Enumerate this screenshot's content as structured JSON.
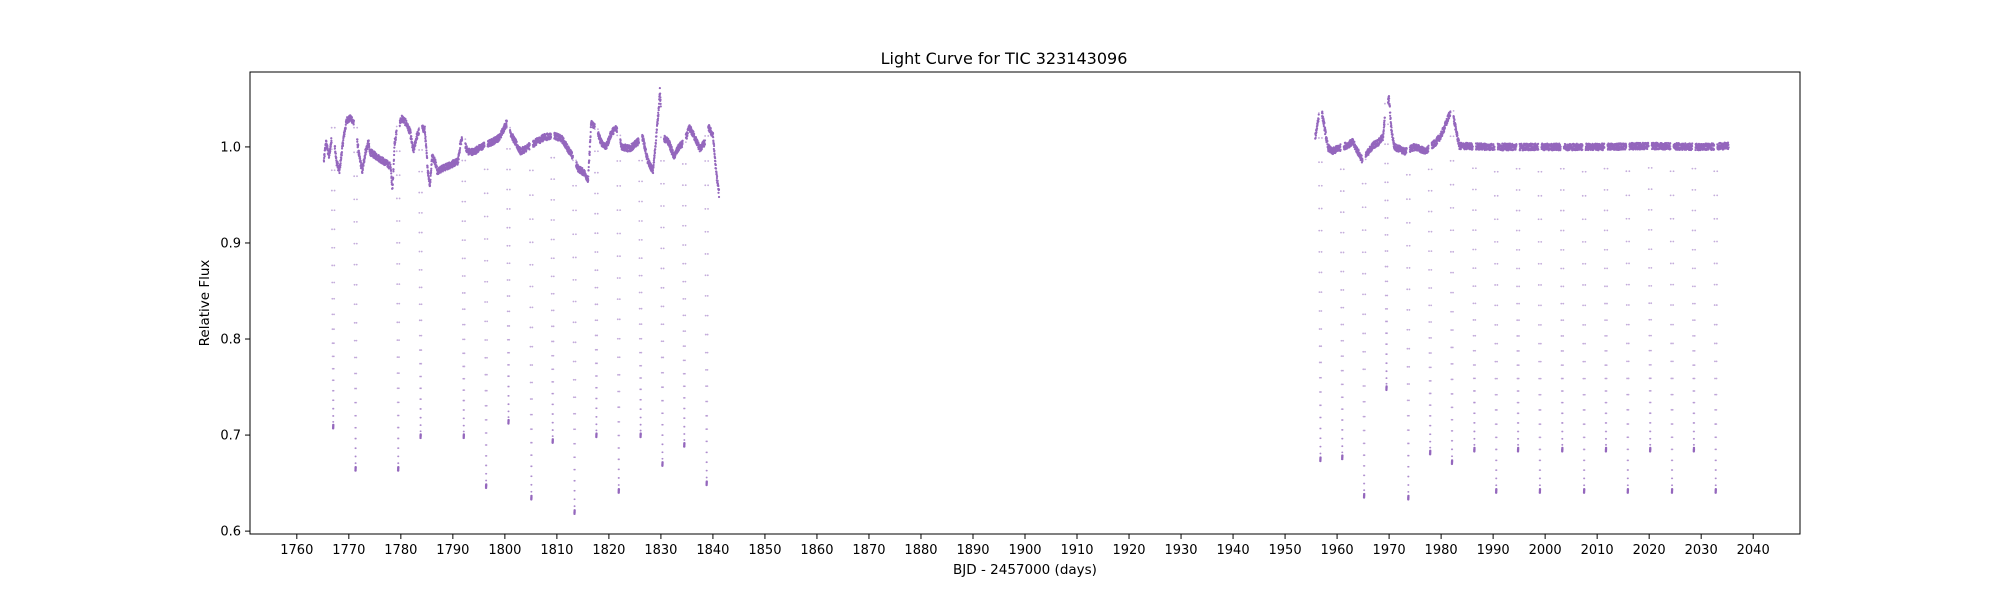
{
  "chart_data": {
    "type": "scatter",
    "title": "Light Curve for TIC 323143096",
    "xlabel": "BJD - 2457000 (days)",
    "ylabel": "Relative Flux",
    "xlim": [
      1751,
      2049
    ],
    "ylim": [
      0.597,
      1.078
    ],
    "x_ticks": [
      1760,
      1770,
      1780,
      1790,
      1800,
      1810,
      1820,
      1830,
      1840,
      1850,
      1860,
      1870,
      1880,
      1890,
      1900,
      1910,
      1920,
      1930,
      1940,
      1950,
      1960,
      1970,
      1980,
      1990,
      2000,
      2010,
      2020,
      2030,
      2040
    ],
    "y_ticks": [
      0.6,
      0.7,
      0.8,
      0.9,
      1.0
    ],
    "y_tick_labels": [
      "0.6",
      "0.7",
      "0.8",
      "0.9",
      "1.0"
    ],
    "grid": false,
    "marker_color": "#9467bd",
    "series": [
      {
        "segments": [
          {
            "x_range": [
              1765.2,
              1841.2
            ],
            "baseline": [
              [
                1765.2,
                0.985
              ],
              [
                1765.6,
                1.005
              ],
              [
                1766.2,
                0.99
              ],
              [
                1767.0,
                1.02
              ],
              [
                1767.6,
                0.985
              ],
              [
                1768.2,
                0.975
              ],
              [
                1769.0,
                1.01
              ],
              [
                1769.6,
                1.028
              ],
              [
                1770.5,
                1.03
              ],
              [
                1771.3,
                1.02
              ],
              [
                1772.0,
                0.99
              ],
              [
                1772.6,
                0.975
              ],
              [
                1773.2,
                0.995
              ],
              [
                1773.8,
                1.005
              ],
              [
                1774.0,
                0.995
              ],
              [
                1778.0,
                0.98
              ],
              [
                1778.4,
                0.955
              ],
              [
                1778.8,
                1.005
              ],
              [
                1779.4,
                1.02
              ],
              [
                1780.2,
                1.03
              ],
              [
                1781.0,
                1.025
              ],
              [
                1781.8,
                1.015
              ],
              [
                1782.4,
                0.995
              ],
              [
                1783.0,
                1.01
              ],
              [
                1783.8,
                1.02
              ],
              [
                1784.6,
                1.018
              ],
              [
                1785.2,
                0.975
              ],
              [
                1785.6,
                0.96
              ],
              [
                1786.0,
                0.99
              ],
              [
                1786.6,
                0.985
              ],
              [
                1787.0,
                0.975
              ],
              [
                1791.0,
                0.985
              ],
              [
                1791.5,
                1.005
              ],
              [
                1792.0,
                1.01
              ],
              [
                1792.8,
                0.995
              ],
              [
                1794.0,
                0.995
              ],
              [
                1795.5,
                1.0
              ],
              [
                1797.5,
                1.005
              ],
              [
                1799.0,
                1.01
              ],
              [
                1800.3,
                1.025
              ],
              [
                1801.5,
                1.01
              ],
              [
                1803.0,
                0.995
              ],
              [
                1804.5,
                1.0
              ],
              [
                1806.0,
                1.005
              ],
              [
                1807.5,
                1.01
              ],
              [
                1809.5,
                1.012
              ],
              [
                1811.0,
                1.008
              ],
              [
                1812.5,
                0.995
              ],
              [
                1813.5,
                0.985
              ],
              [
                1814.0,
                0.978
              ],
              [
                1815.5,
                0.972
              ],
              [
                1816.0,
                0.965
              ],
              [
                1816.6,
                1.025
              ],
              [
                1817.5,
                1.02
              ],
              [
                1818.5,
                1.005
              ],
              [
                1819.5,
                1.0
              ],
              [
                1820.5,
                1.015
              ],
              [
                1821.5,
                1.02
              ],
              [
                1822.5,
                1.0
              ],
              [
                1824.0,
                0.998
              ],
              [
                1825.5,
                1.005
              ],
              [
                1826.5,
                1.01
              ],
              [
                1827.5,
                0.985
              ],
              [
                1828.5,
                0.975
              ],
              [
                1829.0,
                1.005
              ],
              [
                1829.5,
                1.035
              ],
              [
                1829.8,
                1.058
              ],
              [
                1830.3,
                1.01
              ],
              [
                1831.5,
                1.005
              ],
              [
                1832.5,
                0.99
              ],
              [
                1833.5,
                1.0
              ],
              [
                1834.5,
                1.005
              ],
              [
                1835.5,
                1.02
              ],
              [
                1836.5,
                1.01
              ],
              [
                1837.5,
                0.998
              ],
              [
                1838.5,
                1.005
              ],
              [
                1839.2,
                1.02
              ],
              [
                1840.0,
                1.012
              ],
              [
                1840.6,
                0.975
              ],
              [
                1841.2,
                0.95
              ]
            ]
          },
          {
            "x_range": [
              1955.8,
              2035.3
            ],
            "baseline": [
              [
                1955.8,
                1.01
              ],
              [
                1956.4,
                1.03
              ],
              [
                1957.0,
                1.038
              ],
              [
                1957.6,
                1.02
              ],
              [
                1958.2,
                1.0
              ],
              [
                1959.0,
                0.995
              ],
              [
                1960.0,
                0.998
              ],
              [
                1961.0,
                1.0
              ],
              [
                1962.0,
                1.002
              ],
              [
                1963.0,
                1.005
              ],
              [
                1964.0,
                0.995
              ],
              [
                1965.0,
                0.985
              ],
              [
                1966.0,
                0.995
              ],
              [
                1967.0,
                1.002
              ],
              [
                1968.0,
                1.005
              ],
              [
                1968.8,
                1.01
              ],
              [
                1969.5,
                1.045
              ],
              [
                1970.0,
                1.05
              ],
              [
                1970.4,
                1.02
              ],
              [
                1971.0,
                1.0
              ],
              [
                1972.0,
                0.998
              ],
              [
                1973.0,
                0.995
              ],
              [
                1974.0,
                0.998
              ],
              [
                1975.0,
                1.0
              ],
              [
                1976.0,
                0.998
              ],
              [
                1977.0,
                0.995
              ],
              [
                1978.0,
                1.0
              ],
              [
                1979.0,
                1.005
              ],
              [
                1980.0,
                1.012
              ],
              [
                1981.0,
                1.025
              ],
              [
                1982.0,
                1.04
              ],
              [
                1982.4,
                1.03
              ],
              [
                1983.5,
                1.001
              ],
              [
                1990.0,
                1.0
              ],
              [
                2000.0,
                1.0
              ],
              [
                2010.0,
                1.0
              ],
              [
                2020.0,
                1.001
              ],
              [
                2030.0,
                1.0
              ],
              [
                2035.3,
                1.001
              ]
            ]
          }
        ],
        "eclipses": [
          {
            "x": 1767.0,
            "depth": 0.707
          },
          {
            "x": 1771.3,
            "depth": 0.663
          },
          {
            "x": 1779.5,
            "depth": 0.663
          },
          {
            "x": 1783.8,
            "depth": 0.697
          },
          {
            "x": 1792.1,
            "depth": 0.697
          },
          {
            "x": 1796.4,
            "depth": 0.645
          },
          {
            "x": 1800.7,
            "depth": 0.712
          },
          {
            "x": 1805.1,
            "depth": 0.633
          },
          {
            "x": 1809.2,
            "depth": 0.692
          },
          {
            "x": 1813.4,
            "depth": 0.618
          },
          {
            "x": 1817.6,
            "depth": 0.698
          },
          {
            "x": 1821.9,
            "depth": 0.64
          },
          {
            "x": 1826.1,
            "depth": 0.698
          },
          {
            "x": 1830.3,
            "depth": 0.668
          },
          {
            "x": 1834.5,
            "depth": 0.688
          },
          {
            "x": 1838.8,
            "depth": 0.648
          },
          {
            "x": 1956.8,
            "depth": 0.673
          },
          {
            "x": 1961.0,
            "depth": 0.675
          },
          {
            "x": 1965.2,
            "depth": 0.635
          },
          {
            "x": 1969.5,
            "depth": 0.747
          },
          {
            "x": 1973.7,
            "depth": 0.633
          },
          {
            "x": 1977.9,
            "depth": 0.68
          },
          {
            "x": 1982.1,
            "depth": 0.67
          },
          {
            "x": 1986.4,
            "depth": 0.683
          },
          {
            "x": 1990.6,
            "depth": 0.64
          },
          {
            "x": 1994.8,
            "depth": 0.683
          },
          {
            "x": 1999.0,
            "depth": 0.64
          },
          {
            "x": 2003.3,
            "depth": 0.683
          },
          {
            "x": 2007.5,
            "depth": 0.64
          },
          {
            "x": 2011.7,
            "depth": 0.683
          },
          {
            "x": 2015.9,
            "depth": 0.64
          },
          {
            "x": 2020.2,
            "depth": 0.683
          },
          {
            "x": 2024.4,
            "depth": 0.64
          },
          {
            "x": 2028.6,
            "depth": 0.683
          },
          {
            "x": 2032.8,
            "depth": 0.64
          }
        ]
      }
    ]
  }
}
